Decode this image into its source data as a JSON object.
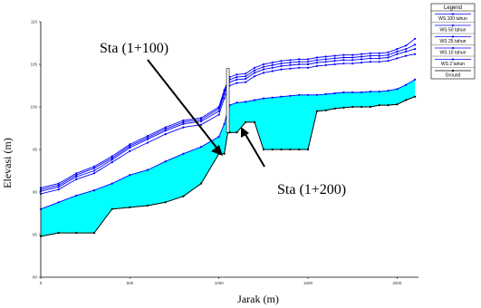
{
  "chart_data": {
    "type": "area",
    "xlabel": "Jarak (m)",
    "ylabel": "Elevasi (m)",
    "xlim": [
      0,
      2120
    ],
    "ylim": [
      80,
      110
    ],
    "x_ticks": [
      "0",
      "500",
      "1000",
      "1500",
      "2000"
    ],
    "x_tick_values": [
      0,
      500,
      1000,
      1500,
      2000
    ],
    "y_ticks": [
      "80",
      "85",
      "90",
      "95",
      "100",
      "105",
      "110"
    ],
    "y_tick_values": [
      80,
      85,
      90,
      95,
      100,
      105,
      110
    ],
    "grid": false,
    "legend": {
      "title": "Legend",
      "placement": "right",
      "entries": [
        "WS  100 tahun",
        "WS  50 tahun",
        "WS  25 tahun",
        "WS  10 tahun",
        "WS  2 tahun",
        "Ground"
      ]
    },
    "colors": {
      "water_fill": "#00ffff",
      "ws_lines": "#0000ff",
      "ground": "#000000"
    },
    "annotations": [
      {
        "text": "Sta (1+100)",
        "x": 1010,
        "y": 95
      },
      {
        "text": "Sta (1+200)",
        "x": 1110,
        "y": 97.5
      }
    ],
    "x": [
      0,
      100,
      200,
      300,
      400,
      500,
      600,
      700,
      800,
      900,
      1000,
      1030,
      1050,
      1060,
      1100,
      1150,
      1200,
      1250,
      1300,
      1350,
      1400,
      1450,
      1500,
      1550,
      1600,
      1650,
      1700,
      1750,
      1800,
      1850,
      1900,
      1950,
      2000,
      2050,
      2100
    ],
    "series": [
      {
        "name": "WS  100 tahun",
        "values": [
          90.5,
          91.0,
          92.2,
          93.0,
          94.2,
          95.6,
          96.6,
          97.6,
          98.4,
          98.7,
          100.0,
          102.0,
          103.0,
          103.5,
          103.8,
          103.9,
          104.6,
          105.0,
          105.2,
          105.4,
          105.5,
          105.6,
          105.6,
          105.8,
          105.9,
          106.0,
          106.1,
          106.1,
          106.2,
          106.3,
          106.3,
          106.4,
          106.8,
          107.2,
          108.0
        ]
      },
      {
        "name": "WS  50 tahun",
        "values": [
          90.3,
          90.8,
          92.0,
          92.8,
          94.0,
          95.4,
          96.4,
          97.4,
          98.2,
          98.5,
          99.8,
          101.8,
          102.8,
          103.2,
          103.5,
          103.6,
          104.3,
          104.7,
          104.9,
          105.1,
          105.2,
          105.3,
          105.3,
          105.5,
          105.6,
          105.7,
          105.8,
          105.8,
          105.9,
          106.0,
          106.0,
          106.1,
          106.5,
          106.8,
          107.3
        ]
      },
      {
        "name": "WS  25 tahun",
        "values": [
          90.1,
          90.6,
          91.8,
          92.5,
          93.8,
          95.2,
          96.2,
          97.2,
          98.0,
          98.3,
          99.5,
          101.5,
          102.5,
          102.9,
          103.2,
          103.3,
          104.0,
          104.4,
          104.6,
          104.8,
          104.9,
          105.0,
          105.0,
          105.2,
          105.3,
          105.4,
          105.5,
          105.5,
          105.6,
          105.7,
          105.7,
          105.8,
          106.2,
          106.5,
          106.8
        ]
      },
      {
        "name": "WS  10 tahun",
        "values": [
          89.8,
          90.3,
          91.5,
          92.2,
          93.5,
          94.8,
          95.8,
          96.8,
          97.6,
          97.9,
          99.1,
          101.0,
          102.0,
          102.5,
          102.8,
          102.9,
          103.6,
          104.0,
          104.2,
          104.4,
          104.5,
          104.6,
          104.6,
          104.8,
          104.9,
          105.0,
          105.1,
          105.1,
          105.2,
          105.3,
          105.3,
          105.4,
          105.7,
          106.0,
          106.2
        ]
      },
      {
        "name": "WS  2 tahun",
        "values": [
          88.0,
          88.8,
          89.6,
          90.2,
          91.0,
          92.0,
          92.6,
          93.6,
          94.5,
          95.3,
          96.5,
          98.0,
          99.6,
          100.2,
          100.5,
          100.6,
          100.8,
          101.0,
          101.1,
          101.2,
          101.3,
          101.4,
          101.4,
          101.4,
          101.5,
          101.6,
          101.7,
          101.7,
          101.7,
          101.8,
          101.8,
          101.9,
          102.1,
          102.6,
          103.2
        ]
      },
      {
        "name": "Ground",
        "values": [
          84.8,
          85.2,
          85.2,
          85.2,
          88.0,
          88.2,
          88.4,
          88.8,
          89.5,
          91.0,
          94.5,
          94.5,
          97.0,
          97.0,
          97.0,
          98.2,
          98.2,
          95.0,
          95.0,
          95.0,
          95.0,
          95.0,
          95.0,
          99.5,
          99.6,
          99.8,
          99.9,
          100.0,
          100.0,
          100.0,
          100.2,
          100.2,
          100.3,
          100.8,
          101.2
        ]
      }
    ]
  }
}
